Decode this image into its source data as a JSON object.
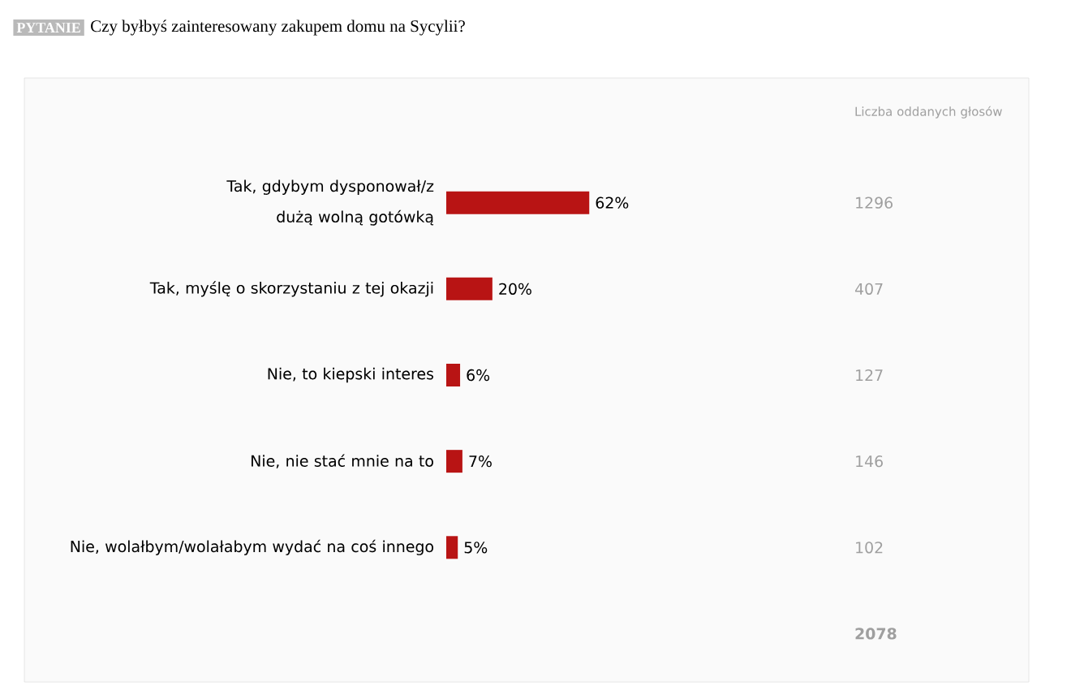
{
  "chart_data": {
    "type": "bar",
    "orientation": "horizontal",
    "title": "Czy byłbyś zainteresowany zakupem domu na Sycylii?",
    "categories": [
      "Tak, gdybym dysponował/z dużą wolną gotówką",
      "Tak, myślę o skorzystaniu z tej okazji",
      "Nie, to kiepski interes",
      "Nie, nie stać mnie na to",
      "Nie, wolałbym/wolałabym wydać na coś innego"
    ],
    "values": [
      62,
      20,
      6,
      7,
      5
    ],
    "value_labels": [
      "62%",
      "20%",
      "6%",
      "7%",
      "5%"
    ],
    "color": "#b81414",
    "annotations": [
      "PYTANIE",
      "Liczba oddanych głosów",
      "1296",
      "407",
      "127",
      "146",
      "102",
      "2078"
    ]
  }
}
